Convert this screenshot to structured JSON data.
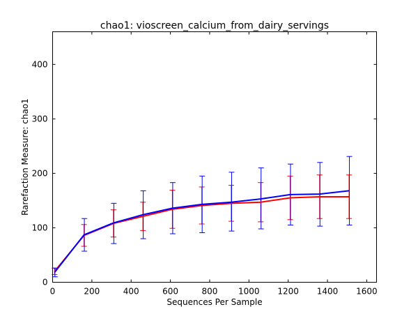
{
  "chart_data": {
    "type": "line",
    "title": "chao1: vioscreen_calcium_from_dairy_servings",
    "xlabel": "Sequences Per Sample",
    "ylabel": "Rarefaction Measure: chao1",
    "xlim": [
      0,
      1650
    ],
    "ylim": [
      0,
      460
    ],
    "xticks": [
      0,
      200,
      400,
      600,
      800,
      1000,
      1200,
      1400,
      1600
    ],
    "yticks": [
      0,
      100,
      200,
      300,
      400
    ],
    "grid": false,
    "legend": "none",
    "x": [
      10,
      160,
      310,
      460,
      610,
      760,
      910,
      1060,
      1210,
      1360,
      1510
    ],
    "series": [
      {
        "color": "#ff0000",
        "values": [
          20,
          86,
          108,
          121,
          134,
          141,
          145,
          147,
          155,
          157,
          157
        ],
        "err_low": [
          14,
          66,
          83,
          95,
          99,
          107,
          112,
          111,
          115,
          117,
          117
        ],
        "err_high": [
          26,
          106,
          133,
          147,
          169,
          175,
          178,
          183,
          195,
          197,
          197
        ]
      },
      {
        "color": "#0000ff",
        "values": [
          18,
          87,
          109,
          124,
          136,
          143,
          147,
          153,
          161,
          162,
          168
        ],
        "err_low": [
          10,
          57,
          71,
          80,
          89,
          91,
          94,
          98,
          105,
          103,
          105
        ],
        "err_high": [
          26,
          117,
          145,
          168,
          183,
          195,
          202,
          210,
          217,
          220,
          231
        ]
      }
    ]
  }
}
